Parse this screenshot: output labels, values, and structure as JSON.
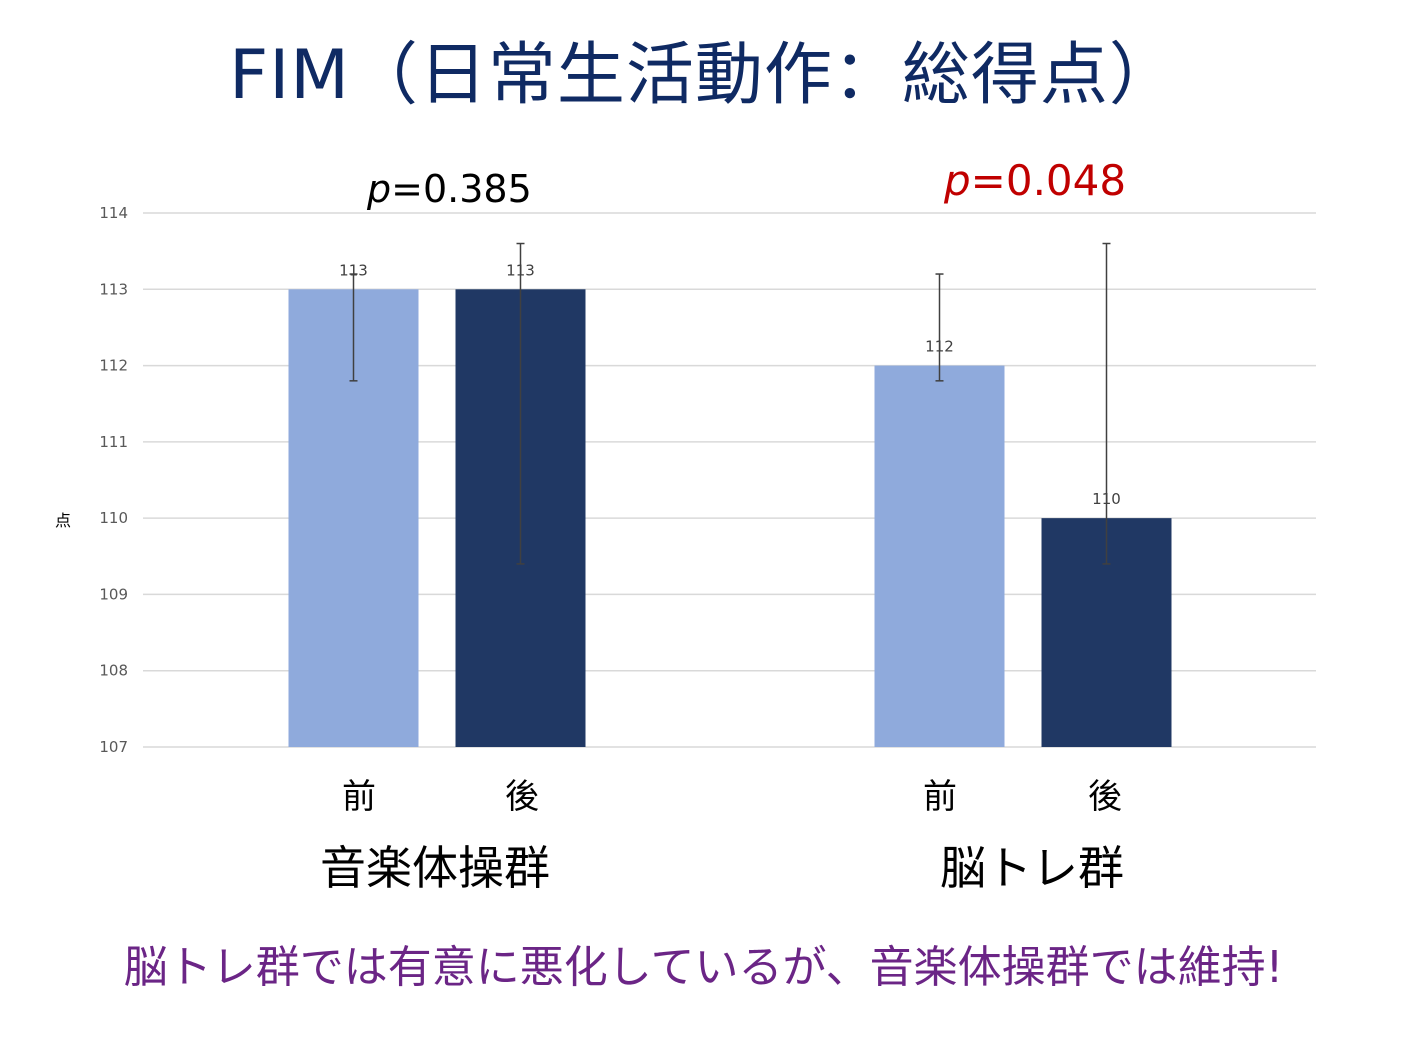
{
  "slide": {
    "title": "FIM（日常生活動作：総得点）",
    "footer": "脳トレ群では有意に悪化しているが、音楽体操群では維持!",
    "footer_color": "#6b2586"
  },
  "annotations": {
    "left": {
      "p_symbol": "p",
      "p_rest": "=0.385",
      "color": "#000000"
    },
    "right": {
      "p_symbol": "p",
      "p_rest": "=0.048",
      "color": "#c00000"
    }
  },
  "chart_data": {
    "type": "bar",
    "ylabel": "点",
    "ylim": [
      107,
      114
    ],
    "yticks": [
      107,
      108,
      109,
      110,
      111,
      112,
      113,
      114
    ],
    "grid": true,
    "groups": [
      {
        "name": "音楽体操群",
        "categories": [
          "前",
          "後"
        ],
        "values": [
          113,
          113
        ],
        "labels": [
          "113",
          "113"
        ],
        "error_low": [
          111.8,
          109.4
        ],
        "error_high": [
          113.2,
          113.6
        ]
      },
      {
        "name": "脳トレ群",
        "categories": [
          "前",
          "後"
        ],
        "values": [
          112,
          110
        ],
        "labels": [
          "112",
          "110"
        ],
        "error_low": [
          111.8,
          109.4
        ],
        "error_high": [
          113.2,
          113.6
        ]
      }
    ],
    "colors": {
      "before": "#8faadc",
      "after": "#203864",
      "error_bar": "#404040",
      "grid": "#d9d9d9",
      "tick_text": "#595959",
      "data_label": "#404040"
    }
  }
}
